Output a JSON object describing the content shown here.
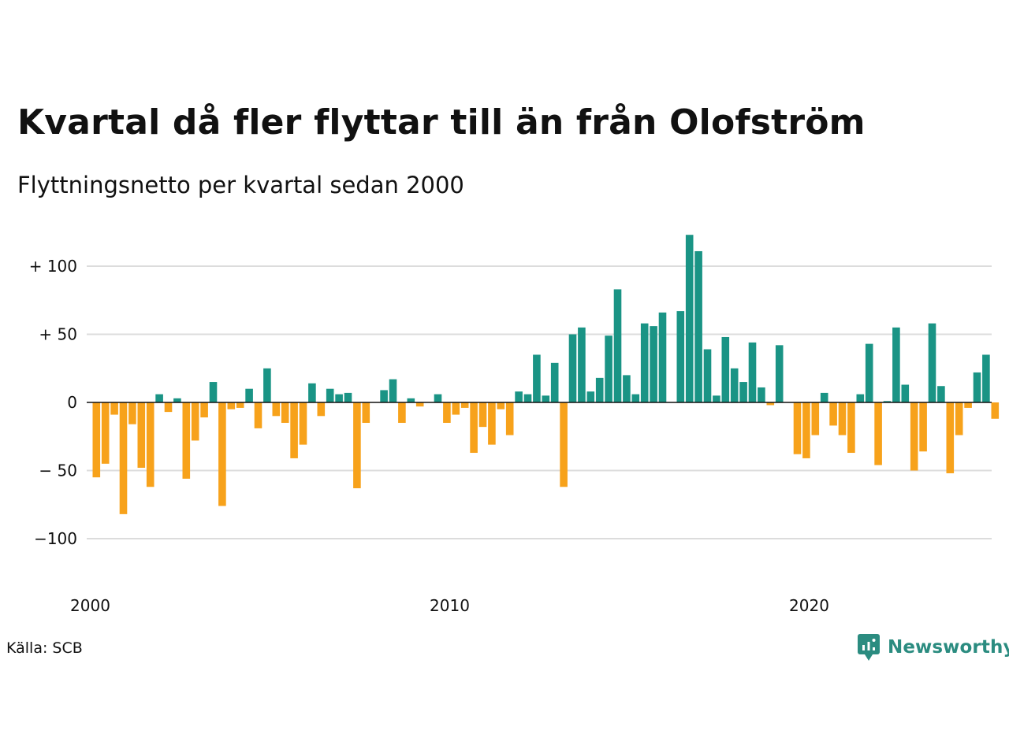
{
  "header": {
    "title": "Kvartal då fler flyttar till än från Olofström",
    "subtitle": "Flyttningsnetto per kvartal sedan 2000"
  },
  "footer": {
    "source": "Källa: SCB",
    "brand": "Newsworthy"
  },
  "colors": {
    "positive": "#1a9485",
    "negative": "#f7a21b",
    "grid": "#dcdcdc",
    "brand": "#2b8c80"
  },
  "icons": {
    "brand_logo": "newsworthy-logo-icon"
  },
  "chart_data": {
    "type": "bar",
    "title": "Kvartal då fler flyttar till än från Olofström",
    "subtitle": "Flyttningsnetto per kvartal sedan 2000",
    "xlabel": "",
    "ylabel": "",
    "ylim": [
      -135,
      125
    ],
    "grid": true,
    "y_ticks": [
      {
        "value": 100,
        "label": "+ 100"
      },
      {
        "value": 50,
        "label": "+  50"
      },
      {
        "value": 0,
        "label": "0"
      },
      {
        "value": -50,
        "label": "− 50"
      },
      {
        "value": -100,
        "label": "−100"
      }
    ],
    "x_ticks": [
      {
        "label": "2000",
        "index": 0
      },
      {
        "label": "2010",
        "index": 40
      },
      {
        "label": "2020",
        "index": 80
      }
    ],
    "values": [
      -55,
      -45,
      -9,
      -82,
      -16,
      -48,
      -62,
      6,
      -7,
      3,
      -56,
      -28,
      -11,
      15,
      -76,
      -5,
      -4,
      10,
      -19,
      25,
      -10,
      -15,
      -41,
      -31,
      14,
      -10,
      10,
      6,
      7,
      -63,
      -15,
      0,
      9,
      17,
      -15,
      3,
      -3,
      0,
      6,
      -15,
      -9,
      -4,
      -37,
      -18,
      -31,
      -5,
      -24,
      8,
      6,
      35,
      5,
      29,
      -62,
      50,
      55,
      8,
      18,
      49,
      83,
      20,
      6,
      58,
      56,
      66,
      0,
      67,
      123,
      111,
      39,
      5,
      48,
      25,
      15,
      44,
      11,
      -2,
      42,
      0,
      -38,
      -41,
      -24,
      7,
      -17,
      -24,
      -37,
      6,
      43,
      -46,
      1,
      55,
      13,
      -50,
      -36,
      58,
      12,
      -52,
      -24,
      -4,
      22,
      35,
      -12
    ]
  }
}
